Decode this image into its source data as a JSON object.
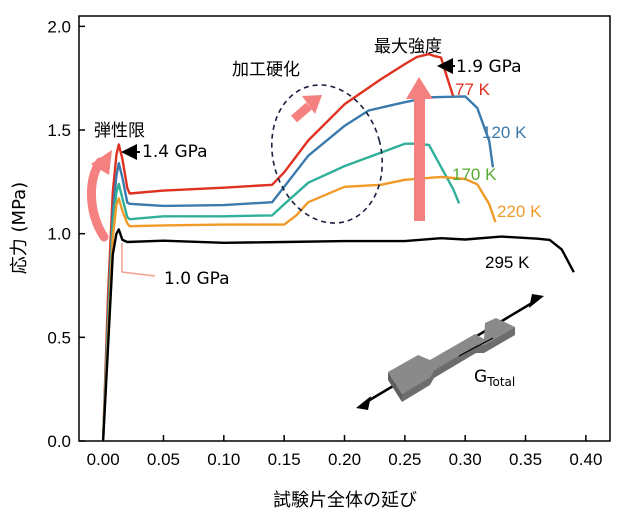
{
  "chart_data": {
    "type": "line",
    "xlabel": "試験片全体の延び",
    "ylabel": "応力 (MPa)",
    "xlim": [
      -0.02,
      0.42
    ],
    "ylim": [
      0.0,
      2.05
    ],
    "xticks": [
      "0.00",
      "0.05",
      "0.10",
      "0.15",
      "0.20",
      "0.25",
      "0.30",
      "0.35",
      "0.40"
    ],
    "yticks": [
      "0.0",
      "0.5",
      "1.0",
      "1.5",
      "2.0"
    ],
    "grid": false,
    "series": [
      {
        "name": "77 K",
        "color": "#e03020",
        "x": [
          0,
          0.004,
          0.008,
          0.011,
          0.013,
          0.016,
          0.02,
          0.022,
          0.05,
          0.1,
          0.14,
          0.15,
          0.17,
          0.2,
          0.23,
          0.25,
          0.26,
          0.27,
          0.275,
          0.28,
          0.285,
          0.29
        ],
        "y": [
          0,
          0.7,
          1.2,
          1.38,
          1.43,
          1.36,
          1.22,
          1.2,
          1.21,
          1.22,
          1.23,
          1.3,
          1.45,
          1.62,
          1.75,
          1.82,
          1.85,
          1.86,
          1.86,
          1.85,
          1.75,
          1.67
        ]
      },
      {
        "name": "120 K",
        "color": "#3a7aac",
        "x": [
          0,
          0.004,
          0.008,
          0.011,
          0.013,
          0.016,
          0.02,
          0.022,
          0.05,
          0.1,
          0.14,
          0.15,
          0.17,
          0.2,
          0.22,
          0.25,
          0.27,
          0.3,
          0.31,
          0.32,
          0.323
        ],
        "y": [
          0,
          0.6,
          1.1,
          1.28,
          1.34,
          1.27,
          1.15,
          1.14,
          1.14,
          1.14,
          1.15,
          1.22,
          1.38,
          1.52,
          1.59,
          1.64,
          1.66,
          1.66,
          1.6,
          1.45,
          1.32
        ]
      },
      {
        "name": "170 K",
        "color": "#30b098",
        "x": [
          0,
          0.004,
          0.008,
          0.011,
          0.013,
          0.016,
          0.02,
          0.022,
          0.05,
          0.1,
          0.14,
          0.15,
          0.17,
          0.2,
          0.23,
          0.25,
          0.26,
          0.27,
          0.28,
          0.29,
          0.295
        ],
        "y": [
          0,
          0.55,
          1.05,
          1.2,
          1.24,
          1.17,
          1.08,
          1.07,
          1.08,
          1.09,
          1.09,
          1.14,
          1.24,
          1.33,
          1.39,
          1.43,
          1.44,
          1.43,
          1.32,
          1.21,
          1.15
        ]
      },
      {
        "name": "220 K",
        "color": "#f29a28",
        "x": [
          0,
          0.004,
          0.008,
          0.011,
          0.013,
          0.016,
          0.02,
          0.022,
          0.05,
          0.1,
          0.15,
          0.16,
          0.17,
          0.2,
          0.23,
          0.25,
          0.28,
          0.3,
          0.31,
          0.32,
          0.325
        ],
        "y": [
          0,
          0.5,
          0.98,
          1.14,
          1.17,
          1.11,
          1.05,
          1.04,
          1.04,
          1.04,
          1.05,
          1.09,
          1.15,
          1.22,
          1.24,
          1.26,
          1.27,
          1.27,
          1.24,
          1.14,
          1.05
        ]
      },
      {
        "name": "295 K",
        "color": "#000000",
        "x": [
          0,
          0.004,
          0.008,
          0.011,
          0.013,
          0.016,
          0.02,
          0.05,
          0.1,
          0.15,
          0.2,
          0.25,
          0.28,
          0.3,
          0.33,
          0.36,
          0.37,
          0.38,
          0.39
        ],
        "y": [
          0,
          0.45,
          0.9,
          1.0,
          1.02,
          0.97,
          0.96,
          0.96,
          0.96,
          0.96,
          0.96,
          0.97,
          0.98,
          0.97,
          0.98,
          0.98,
          0.97,
          0.92,
          0.82
        ]
      }
    ],
    "annotations": {
      "elastic_limit": "弾性限",
      "work_hardening": "加工硬化",
      "max_strength": "最大強度",
      "yield_high": "1.4 GPa",
      "yield_low": "1.0 GPa",
      "uts_high": "1.9 GPa",
      "gauge_label": "G",
      "gauge_subscript": "Total"
    }
  }
}
